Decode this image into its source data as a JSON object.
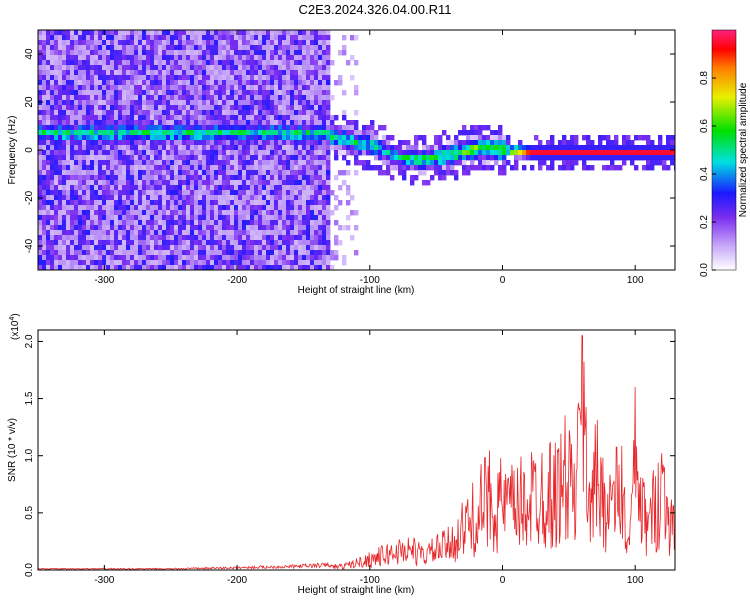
{
  "title": "C2E3.2024.326.04.00.R11",
  "colors": {
    "spectrogram_low": "#7a2cf0",
    "spectrogram_mid": "#00e0e0",
    "spectrogram_high": "#ff0000",
    "snr_line": "#e8262a"
  },
  "chart_data": [
    {
      "type": "heatmap",
      "title": "C2E3.2024.326.04.00.R11",
      "xlabel": "Height of straight line (km)",
      "ylabel": "Frequency (Hz)",
      "xlim": [
        -350,
        130
      ],
      "ylim": [
        -50,
        50
      ],
      "x_ticks": [
        -300,
        -200,
        -100,
        0,
        100
      ],
      "y_ticks": [
        -40,
        -20,
        0,
        20,
        40
      ],
      "colorbar": {
        "label": "Normalized spectral amplitude",
        "range": [
          0,
          1
        ],
        "ticks": [
          "0.0",
          "0.2",
          "0.4",
          "0.6",
          "0.8"
        ],
        "colormap": "rainbow (white-violet-blue-cyan-green-yellow-red)"
      },
      "signal_track": {
        "x": [
          -140,
          -120,
          -100,
          -80,
          -60,
          -40,
          -20,
          0,
          20,
          40,
          60,
          80,
          100,
          130
        ],
        "frequency": [
          8,
          5,
          3,
          -2,
          -3,
          -1,
          2,
          1,
          0,
          0,
          0,
          0,
          0,
          0
        ],
        "amplitude": [
          0.5,
          0.55,
          0.5,
          0.5,
          0.55,
          0.6,
          0.65,
          0.7,
          0.95,
          0.95,
          0.95,
          0.95,
          0.95,
          0.95
        ]
      },
      "noise_region_x": [
        -350,
        -130
      ]
    },
    {
      "type": "line",
      "xlabel": "Height of straight line (km)",
      "ylabel": "SNR (10 * v/v)",
      "y_multiplier": "(x10",
      "y_multiplier_exp": "4",
      "xlim": [
        -350,
        130
      ],
      "ylim": [
        0,
        2.1
      ],
      "x_ticks": [
        -300,
        -200,
        -100,
        0,
        100
      ],
      "y_ticks": [
        "0.0",
        "0.5",
        "1.0",
        "1.5",
        "2.0"
      ],
      "series": [
        {
          "x": [
            -350,
            -300,
            -250,
            -200,
            -160,
            -120,
            -105,
            -100,
            -90,
            -80,
            -70,
            -60,
            -50,
            -40,
            -30,
            -20,
            -10,
            0,
            10,
            20,
            30,
            40,
            45,
            50,
            55,
            60,
            65,
            70,
            80,
            90,
            95,
            100,
            105,
            110,
            120,
            130
          ],
          "y": [
            0.01,
            0.01,
            0.01,
            0.02,
            0.03,
            0.05,
            0.12,
            0.15,
            0.2,
            0.25,
            0.3,
            0.2,
            0.28,
            0.35,
            0.55,
            0.75,
            1.0,
            0.9,
            0.85,
            1.0,
            1.1,
            1.05,
            1.2,
            1.3,
            0.95,
            2.05,
            1.1,
            1.25,
            0.9,
            1.1,
            0.25,
            1.5,
            0.8,
            0.6,
            1.2,
            0.45
          ]
        }
      ]
    }
  ]
}
